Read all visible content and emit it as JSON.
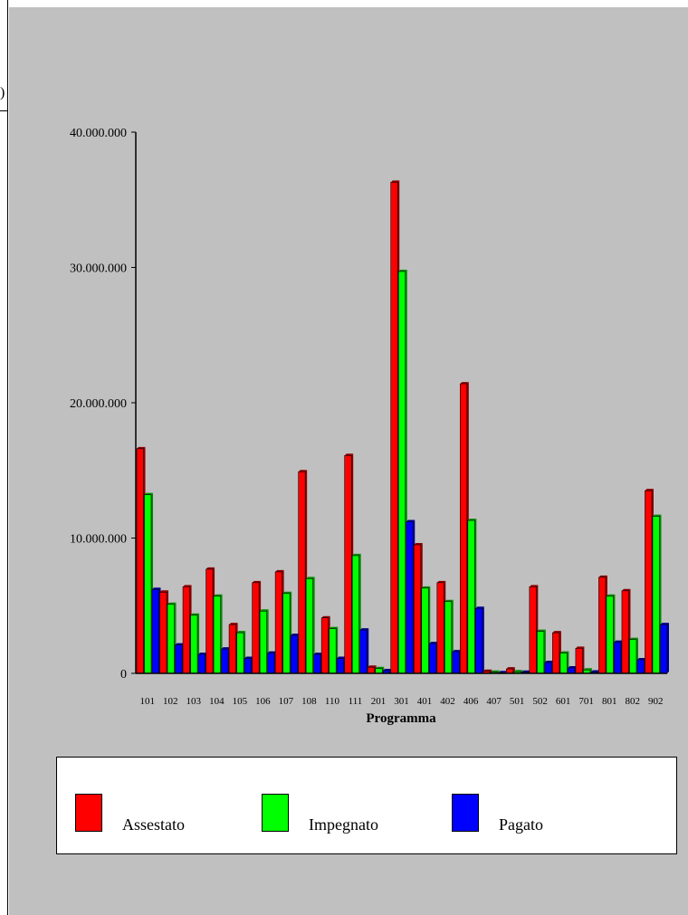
{
  "left_glyph": ")",
  "chart_data": {
    "type": "bar",
    "title": "",
    "xlabel": "Programma",
    "ylabel": "",
    "ylim": [
      0,
      40000000
    ],
    "yticks": [
      0,
      10000000,
      20000000,
      30000000,
      40000000
    ],
    "ytick_labels": [
      "0",
      "10.000.000",
      "20.000.000",
      "30.000.000",
      "40.000.000"
    ],
    "grid": false,
    "legend_position": "bottom",
    "categories": [
      "101",
      "102",
      "103",
      "104",
      "105",
      "106",
      "107",
      "108",
      "110",
      "111",
      "201",
      "301",
      "401",
      "402",
      "406",
      "407",
      "501",
      "502",
      "601",
      "701",
      "801",
      "802",
      "902"
    ],
    "series": [
      {
        "name": "Assestato",
        "color": "#ff0000",
        "values": [
          16600000,
          6000000,
          6400000,
          7700000,
          3600000,
          6700000,
          7500000,
          14900000,
          4100000,
          16100000,
          450000,
          36300000,
          9500000,
          6700000,
          21400000,
          150000,
          330000,
          6400000,
          3000000,
          1850000,
          7100000,
          6100000,
          13500000
        ]
      },
      {
        "name": "Impegnato",
        "color": "#00ff00",
        "values": [
          13200000,
          5100000,
          4300000,
          5700000,
          3000000,
          4600000,
          5900000,
          7000000,
          3300000,
          8700000,
          350000,
          29700000,
          6300000,
          5300000,
          11300000,
          80000,
          120000,
          3100000,
          1500000,
          250000,
          5700000,
          2500000,
          11600000
        ]
      },
      {
        "name": "Pagato",
        "color": "#0000ff",
        "values": [
          6200000,
          2100000,
          1400000,
          1800000,
          1100000,
          1500000,
          2800000,
          1400000,
          1100000,
          3200000,
          200000,
          11200000,
          2200000,
          1600000,
          4800000,
          50000,
          80000,
          800000,
          400000,
          100000,
          2300000,
          1000000,
          3600000
        ]
      }
    ]
  }
}
